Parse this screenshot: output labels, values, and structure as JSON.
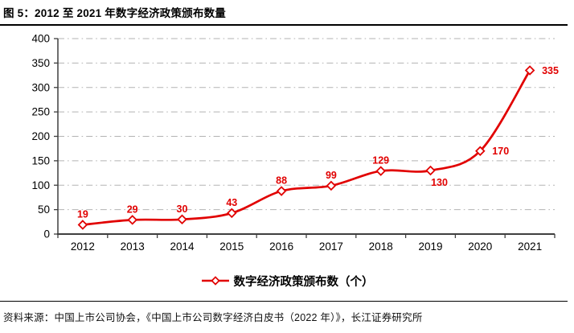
{
  "header": {
    "title": "图 5：2012 至 2021 年数字经济政策颁布数量"
  },
  "chart_data": {
    "type": "line",
    "title": "图 5：2012 至 2021 年数字经济政策颁布数量",
    "categories": [
      "2012",
      "2013",
      "2014",
      "2015",
      "2016",
      "2017",
      "2018",
      "2019",
      "2020",
      "2021"
    ],
    "series": [
      {
        "name": "数字经济政策颁布数（个）",
        "values": [
          19,
          29,
          30,
          43,
          88,
          99,
          129,
          130,
          170,
          335
        ]
      }
    ],
    "xlabel": "",
    "ylabel": "",
    "ylim": [
      0,
      400
    ],
    "ytick_step": 50,
    "grid": "horizontal-dash-dot",
    "smooth_line": true,
    "marker": "open-diamond",
    "legend_position": "bottom-center",
    "label_positions": [
      "above",
      "above",
      "above",
      "above",
      "above",
      "above",
      "above",
      "below",
      "right",
      "right"
    ],
    "colors": {
      "series": "#e10000",
      "data_label": "#e10000",
      "grid": "#b3b3b3",
      "axis": "#3f3f3f",
      "text": "#000000"
    }
  },
  "legend": {
    "label": "数字经济政策颁布数（个）"
  },
  "footer": {
    "source": "资料来源：中国上市公司协会，《中国上市公司数字经济白皮书（2022 年）》，长江证券研究所"
  }
}
